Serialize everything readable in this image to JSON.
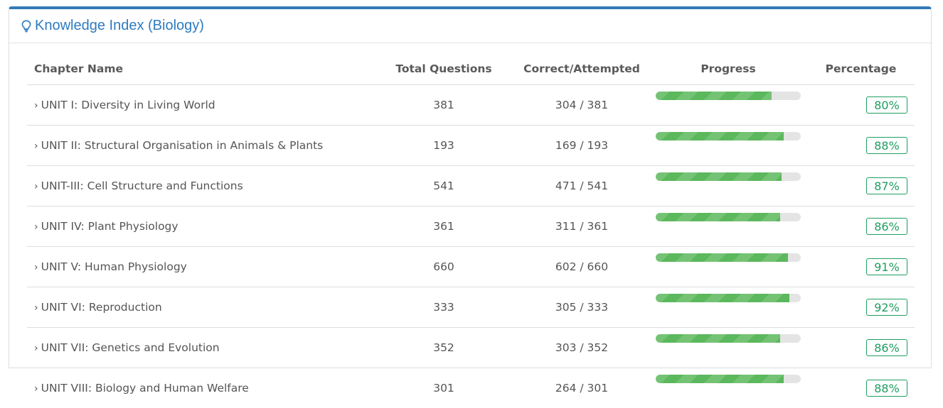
{
  "panel": {
    "title": "Knowledge Index (Biology)",
    "icon": "lightbulb-icon",
    "accent_color": "#337ab7",
    "title_color": "#2f7bbf"
  },
  "table": {
    "headers": {
      "chapter_name": "Chapter Name",
      "total_questions": "Total Questions",
      "correct_attempted": "Correct/Attempted",
      "progress": "Progress",
      "percentage": "Percentage"
    },
    "progress_color": "#5cb85c",
    "badge_color": "#1e9e5e",
    "rows": [
      {
        "chapter": "UNIT I: Diversity in Living World",
        "total": "381",
        "correct_attempted": "304 / 381",
        "progress": 80,
        "percentage": "80%"
      },
      {
        "chapter": "UNIT II: Structural Organisation in Animals & Plants",
        "total": "193",
        "correct_attempted": "169 / 193",
        "progress": 88,
        "percentage": "88%"
      },
      {
        "chapter": "UNIT-III: Cell Structure and Functions",
        "total": "541",
        "correct_attempted": "471 / 541",
        "progress": 87,
        "percentage": "87%"
      },
      {
        "chapter": "UNIT IV: Plant Physiology",
        "total": "361",
        "correct_attempted": "311 / 361",
        "progress": 86,
        "percentage": "86%"
      },
      {
        "chapter": "UNIT V: Human Physiology",
        "total": "660",
        "correct_attempted": "602 / 660",
        "progress": 91,
        "percentage": "91%"
      },
      {
        "chapter": "UNIT VI: Reproduction",
        "total": "333",
        "correct_attempted": "305 / 333",
        "progress": 92,
        "percentage": "92%"
      },
      {
        "chapter": "UNIT VII: Genetics and Evolution",
        "total": "352",
        "correct_attempted": "303 / 352",
        "progress": 86,
        "percentage": "86%"
      },
      {
        "chapter": "UNIT VIII: Biology and Human Welfare",
        "total": "301",
        "correct_attempted": "264 / 301",
        "progress": 88,
        "percentage": "88%"
      }
    ]
  }
}
